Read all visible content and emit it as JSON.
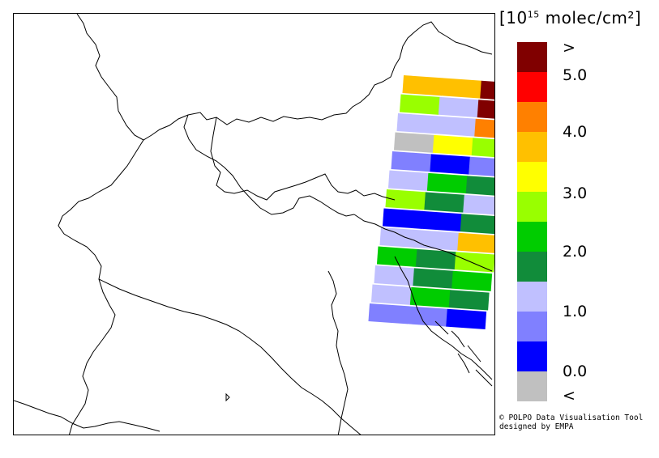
{
  "colorbar": {
    "unit_prefix": "[10",
    "unit_exp": "15",
    "unit_suffix": " molec/cm²]",
    "colors": [
      "#800000",
      "#ff0000",
      "#ff8000",
      "#ffc000",
      "#ffff00",
      "#99ff00",
      "#00cc00",
      "#118c3a",
      "#c0c0ff",
      "#8080ff",
      "#0000ff",
      "#c0c0c0"
    ],
    "labels": [
      ">",
      "5.0",
      "4.0",
      "3.0",
      "2.0",
      "1.0",
      "0.0",
      "<"
    ]
  },
  "credit": {
    "line1": "© POLPO Data Visualisation Tool",
    "line2": "designed by EMPA"
  },
  "swaths": [
    [
      "#ffc000",
      "#ffc000",
      "#800000"
    ],
    [
      "#99ff00",
      "#c0c0ff",
      "#800000"
    ],
    [
      "#c0c0ff",
      "#c0c0ff",
      "#ff8000"
    ],
    [
      "#c0c0c0",
      "#ffff00",
      "#99ff00"
    ],
    [
      "#8080ff",
      "#0000ff",
      "#8080ff"
    ],
    [
      "#c0c0ff",
      "#00cc00",
      "#118c3a"
    ],
    [
      "#99ff00",
      "#118c3a",
      "#c0c0ff"
    ],
    [
      "#0000ff",
      "#0000ff",
      "#118c3a"
    ],
    [
      "#c0c0ff",
      "#c0c0ff",
      "#ffc000"
    ],
    [
      "#00cc00",
      "#118c3a",
      "#99ff00"
    ],
    [
      "#c0c0ff",
      "#118c3a",
      "#00cc00"
    ],
    [
      "#c0c0ff",
      "#00cc00",
      "#118c3a"
    ],
    [
      "#8080ff",
      "#8080ff",
      "#0000ff"
    ]
  ]
}
